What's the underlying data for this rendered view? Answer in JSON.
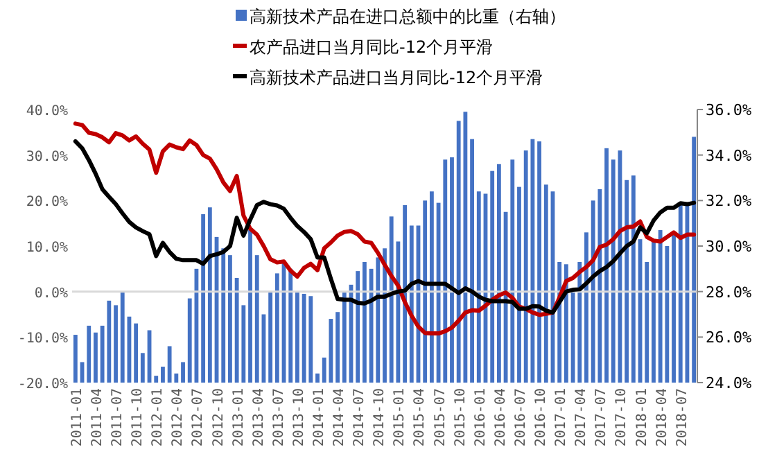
{
  "chart_data": {
    "type": "bar",
    "categories": [
      "2011-01",
      null,
      null,
      "2011-04",
      null,
      null,
      "2011-07",
      null,
      null,
      "2011-10",
      null,
      null,
      "2012-01",
      null,
      null,
      "2012-04",
      null,
      null,
      "2012-07",
      null,
      null,
      "2012-10",
      null,
      null,
      "2013-01",
      null,
      null,
      "2013-04",
      null,
      null,
      "2013-07",
      null,
      null,
      "2013-10",
      null,
      null,
      "2014-01",
      null,
      null,
      "2014-04",
      null,
      null,
      "2014-07",
      null,
      null,
      "2014-10",
      null,
      null,
      "2015-01",
      null,
      null,
      "2015-04",
      null,
      null,
      "2015-07",
      null,
      null,
      "2015-10",
      null,
      null,
      "2016-01",
      null,
      null,
      "2016-04",
      null,
      null,
      "2016-07",
      null,
      null,
      "2016-10",
      null,
      null,
      "2017-01",
      null,
      null,
      "2017-04",
      null,
      null,
      "2017-07",
      null,
      null,
      "2017-10",
      null,
      null,
      "2018-01",
      null,
      null,
      "2018-04",
      null,
      null,
      "2018-07",
      null,
      null
    ],
    "series": [
      {
        "name": "高新技术产品在进口总额中的比重（右轴）",
        "axis": "y2",
        "color": "#4472c4",
        "values": [
          26.1,
          24.9,
          26.5,
          26.2,
          26.5,
          27.6,
          27.4,
          28.0,
          26.9,
          26.6,
          25.3,
          26.3,
          24.3,
          24.7,
          25.6,
          24.4,
          24.9,
          27.7,
          29.0,
          31.4,
          31.7,
          30.4,
          29.9,
          29.6,
          28.6,
          27.4,
          30.7,
          29.6,
          27.0,
          28.0,
          28.8,
          29.3,
          29.0,
          28.0,
          27.9,
          27.8,
          24.4,
          25.1,
          26.8,
          27.1,
          28.0,
          28.3,
          28.9,
          29.3,
          29.0,
          29.5,
          29.9,
          31.3,
          30.2,
          31.8,
          30.9,
          30.9,
          32.0,
          32.4,
          31.9,
          33.8,
          33.9,
          35.5,
          35.9,
          34.7,
          32.4,
          32.3,
          33.3,
          33.6,
          31.5,
          33.8,
          32.6,
          34.2,
          34.7,
          34.6,
          32.7,
          32.4,
          29.3,
          29.2,
          28.0,
          29.3,
          30.6,
          32.0,
          32.5,
          34.3,
          33.8,
          34.2,
          32.9,
          33.1,
          30.3,
          29.3,
          30.2,
          30.7,
          30.0,
          30.5,
          31.8,
          31.8,
          34.8
        ]
      },
      {
        "name": "农产品进口当月同比-12个月平滑",
        "type": "line",
        "color": "#c00000",
        "values": [
          36.9,
          36.6,
          34.9,
          34.6,
          33.9,
          32.8,
          34.8,
          34.3,
          33.2,
          34.1,
          32.5,
          31.2,
          26.1,
          30.8,
          32.3,
          31.7,
          31.3,
          33.2,
          32.2,
          30.0,
          29.2,
          26.9,
          24.0,
          22.1,
          25.4,
          16.7,
          13.8,
          12.5,
          10.0,
          7.1,
          6.4,
          6.6,
          4.6,
          3.3,
          5.2,
          6.1,
          4.7,
          9.5,
          10.8,
          12.3,
          13.1,
          13.3,
          12.6,
          11.0,
          10.7,
          8.5,
          5.9,
          3.4,
          1.3,
          -2.3,
          -5.3,
          -7.7,
          -9.1,
          -9.2,
          -9.2,
          -8.7,
          -7.9,
          -6.4,
          -4.6,
          -4.1,
          -4.2,
          -3.1,
          -1.8,
          -0.8,
          -0.2,
          -1.4,
          -3.3,
          -3.8,
          -4.6,
          -5.1,
          -4.9,
          -4.6,
          -1.3,
          2.3,
          3.0,
          4.3,
          5.4,
          6.9,
          9.8,
          10.3,
          11.5,
          13.3,
          14.1,
          14.3,
          15.4,
          12.0,
          11.2,
          11.0,
          12.0,
          13.0,
          11.8,
          12.5,
          12.5
        ]
      },
      {
        "name": "高新技术产品进口当月同比-12个月平滑",
        "type": "line",
        "color": "#000000",
        "values": [
          33.0,
          31.5,
          28.9,
          25.9,
          22.5,
          20.8,
          19.2,
          17.2,
          15.3,
          14.1,
          13.3,
          12.6,
          7.8,
          10.7,
          8.7,
          7.2,
          6.9,
          6.9,
          6.9,
          6.1,
          7.8,
          8.2,
          8.7,
          10.0,
          16.2,
          12.3,
          15.8,
          19.0,
          19.7,
          19.2,
          18.9,
          18.2,
          16.2,
          14.4,
          13.1,
          11.5,
          7.5,
          7.5,
          2.8,
          -1.6,
          -1.8,
          -1.8,
          -2.5,
          -2.6,
          -2.0,
          -1.1,
          -1.1,
          -0.5,
          0.0,
          0.2,
          1.7,
          2.3,
          1.7,
          1.7,
          1.7,
          1.7,
          0.7,
          -0.3,
          0.7,
          0.0,
          -1.1,
          -1.8,
          -2.1,
          -2.1,
          -2.1,
          -2.3,
          -3.8,
          -3.8,
          -3.2,
          -3.3,
          -4.2,
          -4.6,
          -2.3,
          0.0,
          0.4,
          0.5,
          1.8,
          3.3,
          4.5,
          5.4,
          6.7,
          8.4,
          10.0,
          11.0,
          14.1,
          12.8,
          15.6,
          17.4,
          18.4,
          18.4,
          19.4,
          19.2,
          19.5
        ]
      }
    ],
    "ylim": [
      -20,
      40
    ],
    "yticks": [
      {
        "value": -20,
        "label": "-20.0%"
      },
      {
        "value": -10,
        "label": "-10.0%"
      },
      {
        "value": 0,
        "label": "0.0%"
      },
      {
        "value": 10,
        "label": "10.0%"
      },
      {
        "value": 20,
        "label": "20.0%"
      },
      {
        "value": 30,
        "label": "30.0%"
      },
      {
        "value": 40,
        "label": "40.0%"
      }
    ],
    "y2lim": [
      24,
      36
    ],
    "y2ticks": [
      {
        "value": 24,
        "label": "24.0%"
      },
      {
        "value": 26,
        "label": "26.0%"
      },
      {
        "value": 28,
        "label": "28.0%"
      },
      {
        "value": 30,
        "label": "30.0%"
      },
      {
        "value": 32,
        "label": "32.0%"
      },
      {
        "value": 34,
        "label": "34.0%"
      },
      {
        "value": 36,
        "label": "36.0%"
      }
    ],
    "ref_lines": [
      {
        "axis": "y",
        "value": 0,
        "color": "#d9d9d9"
      }
    ],
    "legend": "top",
    "grid": false
  }
}
